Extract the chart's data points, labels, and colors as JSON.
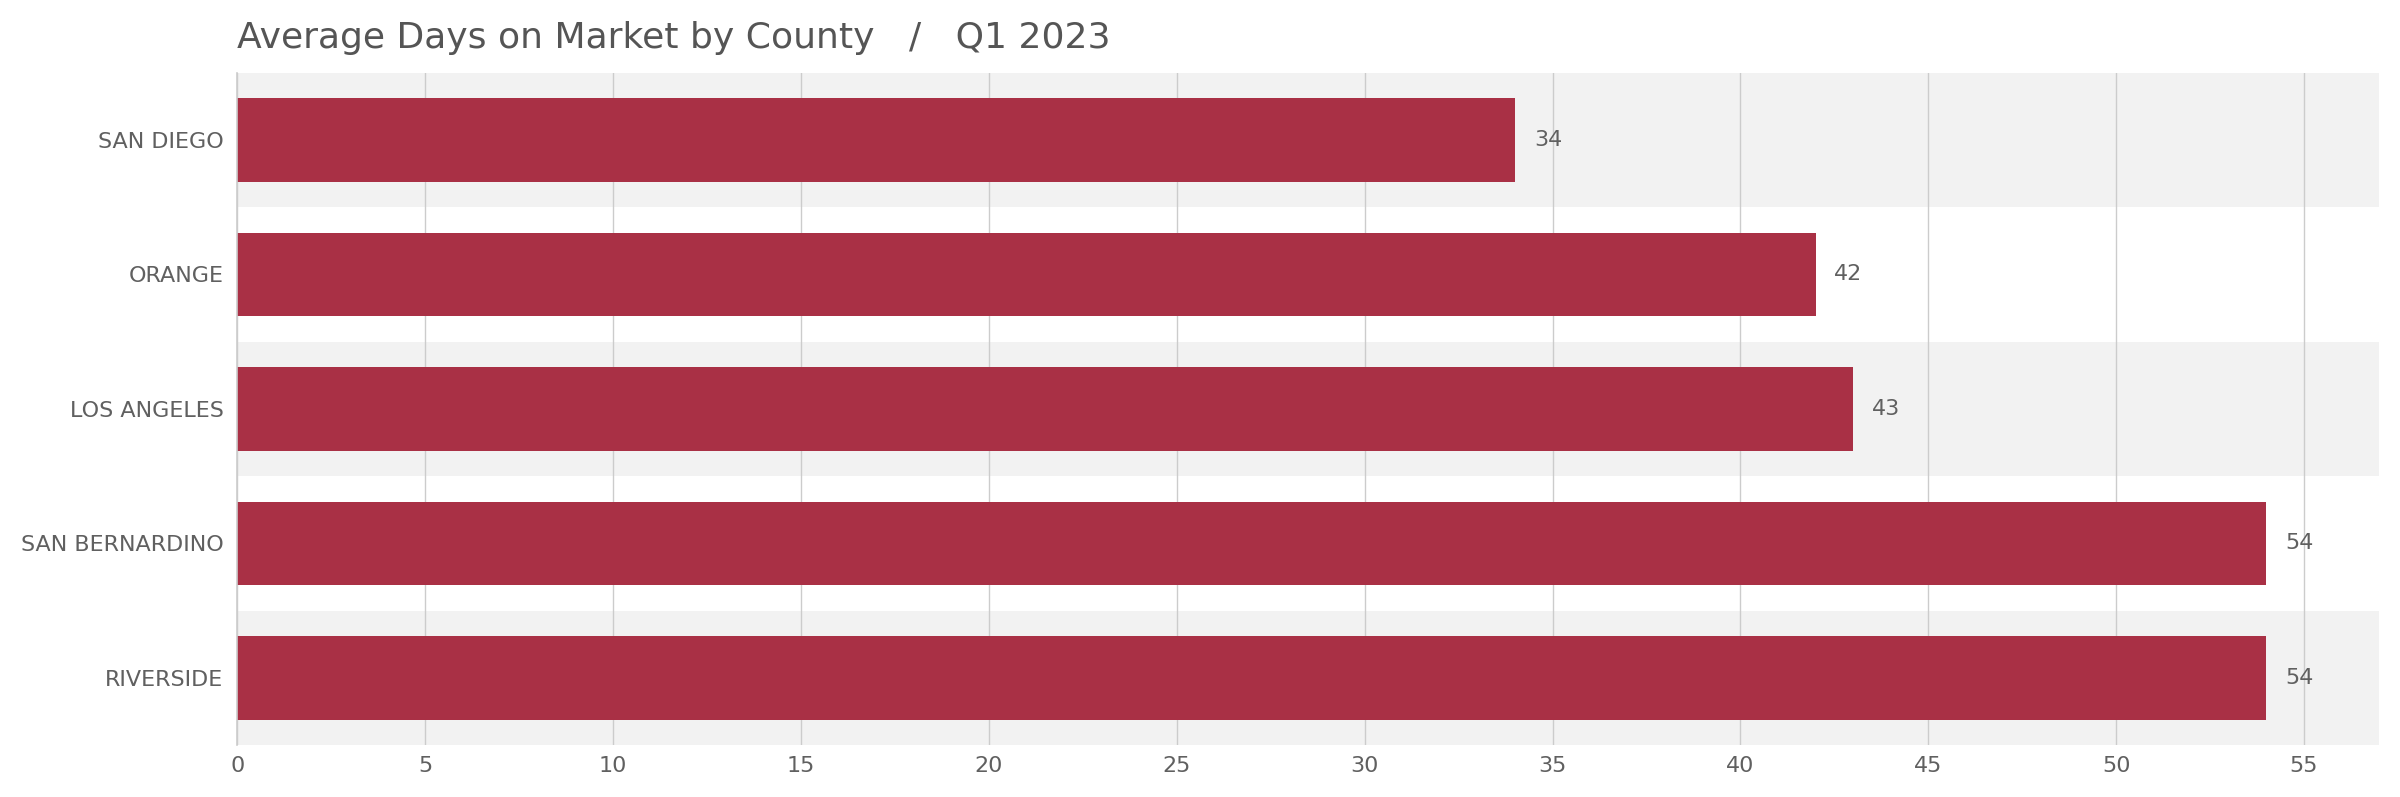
{
  "title": "Average Days on Market by County",
  "subtitle": "Q1 2023",
  "title_separator": "   /   ",
  "categories": [
    "SAN DIEGO",
    "ORANGE",
    "LOS ANGELES",
    "SAN BERNARDINO",
    "RIVERSIDE"
  ],
  "values": [
    34,
    42,
    43,
    54,
    54
  ],
  "bar_color": "#a93045",
  "bar_row_bg_colors": [
    "#f2f2f2",
    "#ffffff",
    "#f2f2f2",
    "#ffffff",
    "#f2f2f2"
  ],
  "text_color": "#606060",
  "title_color": "#555555",
  "background_color": "#ffffff",
  "xlim": [
    0,
    57
  ],
  "xticks": [
    0,
    5,
    10,
    15,
    20,
    25,
    30,
    35,
    40,
    45,
    50,
    55
  ],
  "grid_color": "#cccccc",
  "bar_height": 0.62,
  "value_label_fontsize": 16,
  "ylabel_fontsize": 16,
  "xlabel_fontsize": 16,
  "title_fontsize": 26,
  "subtitle_fontsize": 26
}
